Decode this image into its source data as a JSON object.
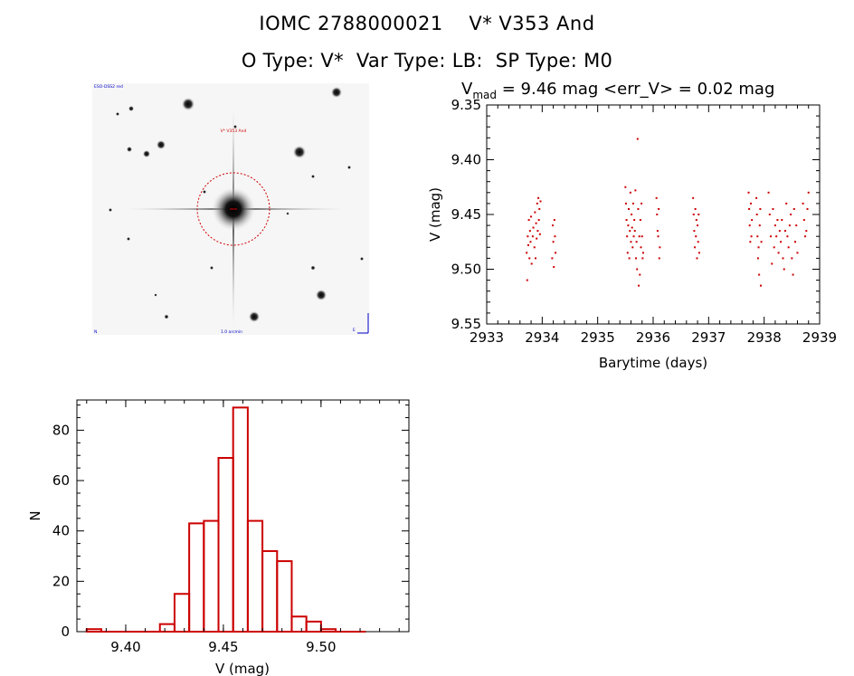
{
  "header": {
    "line1": "IOMC 2788000021    V* V353 And",
    "line2": "O Type: V*  Var Type: LB:  SP Type: M0"
  },
  "image_panel": {
    "label_top_left": "ESO-DSS2 red",
    "label_target": "V* V353 And",
    "label_bottom_left": "N",
    "label_bottom_center": "1.0 arcmin",
    "label_bottom_right": "E"
  },
  "chart_data": [
    {
      "type": "scatter",
      "title_prefix": "V",
      "title_subscript": "mad",
      "title_suffix": " = 9.46 mag <err_V> = 0.02 mag",
      "xlabel": "Barytime (days)",
      "ylabel": "V (mag)",
      "xlim": [
        2933,
        2939
      ],
      "ylim": [
        9.55,
        9.35
      ],
      "y_inverted": true,
      "xticks": [
        "2933",
        "2934",
        "2935",
        "2936",
        "2937",
        "2938",
        "2939"
      ],
      "yticks": [
        "9.35",
        "9.40",
        "9.45",
        "9.50",
        "9.55"
      ],
      "color": "#cc0000",
      "series": [
        {
          "name": "V",
          "x": [
            2933.72,
            2933.73,
            2933.74,
            2933.75,
            2933.76,
            2933.77,
            2933.78,
            2933.79,
            2933.8,
            2933.81,
            2933.83,
            2933.84,
            2933.86,
            2933.87,
            2933.88,
            2933.89,
            2933.9,
            2933.91,
            2933.92,
            2933.93,
            2933.94,
            2933.95,
            2933.96,
            2933.97,
            2934.18,
            2934.19,
            2934.2,
            2934.21,
            2934.22,
            2934.23,
            2934.24,
            2935.5,
            2935.51,
            2935.52,
            2935.53,
            2935.54,
            2935.55,
            2935.56,
            2935.57,
            2935.58,
            2935.59,
            2935.6,
            2935.61,
            2935.62,
            2935.63,
            2935.64,
            2935.65,
            2935.66,
            2935.67,
            2935.68,
            2935.69,
            2935.7,
            2935.71,
            2935.72,
            2935.73,
            2935.74,
            2935.75,
            2935.76,
            2935.77,
            2935.78,
            2935.79,
            2935.8,
            2935.81,
            2935.82,
            2936.06,
            2936.07,
            2936.08,
            2936.09,
            2936.1,
            2936.11,
            2936.12,
            2936.72,
            2936.73,
            2936.74,
            2936.75,
            2936.76,
            2936.77,
            2936.78,
            2936.79,
            2936.8,
            2936.81,
            2936.82,
            2936.83,
            2937.72,
            2937.73,
            2937.74,
            2937.75,
            2937.76,
            2937.77,
            2937.78,
            2937.86,
            2937.87,
            2937.88,
            2937.89,
            2937.9,
            2937.91,
            2937.92,
            2937.93,
            2937.94,
            2937.95,
            2938.08,
            2938.1,
            2938.12,
            2938.14,
            2938.16,
            2938.18,
            2938.2,
            2938.22,
            2938.24,
            2938.26,
            2938.28,
            2938.3,
            2938.32,
            2938.34,
            2938.36,
            2938.38,
            2938.4,
            2938.42,
            2938.44,
            2938.46,
            2938.48,
            2938.5,
            2938.52,
            2938.54,
            2938.56,
            2938.58,
            2938.6,
            2938.7,
            2938.72,
            2938.74,
            2938.76,
            2938.78,
            2938.8
          ],
          "y": [
            9.485,
            9.51,
            9.47,
            9.478,
            9.455,
            9.49,
            9.465,
            9.475,
            9.452,
            9.495,
            9.47,
            9.462,
            9.48,
            9.448,
            9.49,
            9.458,
            9.472,
            9.44,
            9.465,
            9.435,
            9.455,
            9.445,
            9.468,
            9.438,
            9.49,
            9.46,
            9.475,
            9.498,
            9.455,
            9.47,
            9.485,
            9.425,
            9.44,
            9.455,
            9.47,
            9.485,
            9.46,
            9.445,
            9.49,
            9.465,
            9.43,
            9.475,
            9.45,
            9.462,
            9.48,
            9.44,
            9.47,
            9.455,
            9.465,
            9.428,
            9.49,
            9.475,
            9.5,
            9.381,
            9.445,
            9.515,
            9.47,
            9.505,
            9.455,
            9.48,
            9.44,
            9.47,
            9.49,
            9.485,
            9.435,
            9.45,
            9.465,
            9.47,
            9.445,
            9.49,
            9.48,
            9.435,
            9.45,
            9.465,
            9.48,
            9.445,
            9.47,
            9.455,
            9.49,
            9.46,
            9.475,
            9.45,
            9.485,
            9.43,
            9.445,
            9.46,
            9.475,
            9.44,
            9.47,
            9.455,
            9.435,
            9.45,
            9.47,
            9.49,
            9.48,
            9.505,
            9.46,
            9.445,
            9.515,
            9.475,
            9.43,
            9.45,
            9.47,
            9.495,
            9.445,
            9.48,
            9.46,
            9.47,
            9.455,
            9.485,
            9.465,
            9.475,
            9.455,
            9.49,
            9.5,
            9.465,
            9.44,
            9.47,
            9.48,
            9.46,
            9.45,
            9.49,
            9.505,
            9.445,
            9.475,
            9.46,
            9.485,
            9.44,
            9.455,
            9.47,
            9.465,
            9.445,
            9.43
          ]
        }
      ]
    },
    {
      "type": "histogram",
      "xlabel": "V (mag)",
      "ylabel": "N",
      "xlim": [
        9.375,
        9.545
      ],
      "ylim": [
        0,
        92
      ],
      "xticks": [
        "9.40",
        "9.45",
        "9.50"
      ],
      "yticks": [
        "0",
        "20",
        "40",
        "60",
        "80"
      ],
      "color": "#cc0000",
      "bin_width": 0.0075,
      "bin_starts": [
        9.38,
        9.3875,
        9.395,
        9.4025,
        9.41,
        9.4175,
        9.425,
        9.4325,
        9.44,
        9.4475,
        9.455,
        9.4625,
        9.47,
        9.4775,
        9.485,
        9.4925,
        9.5,
        9.5075,
        9.515
      ],
      "counts": [
        1,
        0,
        0,
        0,
        0,
        3,
        15,
        43,
        44,
        69,
        89,
        44,
        32,
        28,
        6,
        4,
        1,
        0,
        0
      ]
    }
  ]
}
